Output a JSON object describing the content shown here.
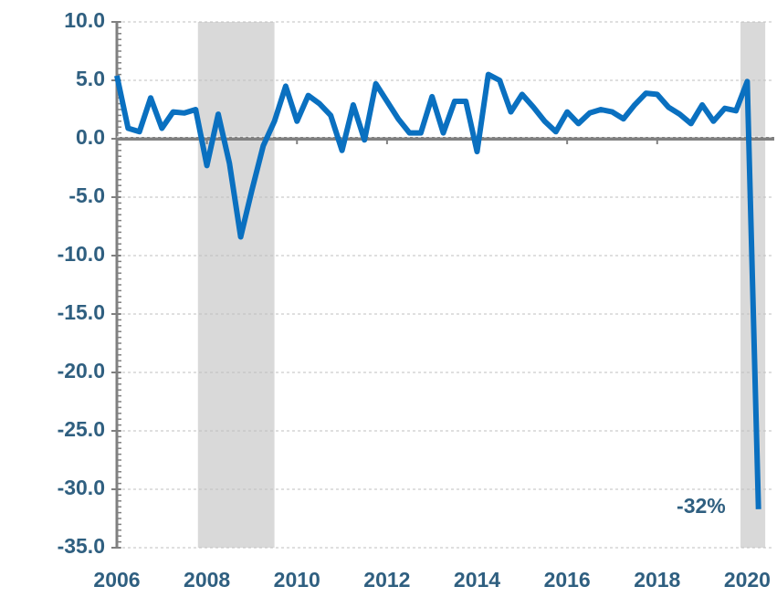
{
  "chart_data": {
    "type": "line",
    "x": [
      2006,
      2006.25,
      2006.5,
      2006.75,
      2007,
      2007.25,
      2007.5,
      2007.75,
      2008,
      2008.25,
      2008.5,
      2008.75,
      2009,
      2009.25,
      2009.5,
      2009.75,
      2010,
      2010.25,
      2010.5,
      2010.75,
      2011,
      2011.25,
      2011.5,
      2011.75,
      2012,
      2012.25,
      2012.5,
      2012.75,
      2013,
      2013.25,
      2013.5,
      2013.75,
      2014,
      2014.25,
      2014.5,
      2014.75,
      2015,
      2015.25,
      2015.5,
      2015.75,
      2016,
      2016.25,
      2016.5,
      2016.75,
      2017,
      2017.25,
      2017.5,
      2017.75,
      2018,
      2018.25,
      2018.5,
      2018.75,
      2019,
      2019.25,
      2019.5,
      2019.75,
      2020,
      2020.25
    ],
    "values": [
      5.4,
      0.9,
      0.6,
      3.5,
      0.9,
      2.3,
      2.2,
      2.5,
      -2.3,
      2.1,
      -2.1,
      -8.4,
      -4.4,
      -0.6,
      1.5,
      4.5,
      1.5,
      3.7,
      3.0,
      2.0,
      -1.0,
      2.9,
      -0.1,
      4.7,
      3.2,
      1.7,
      0.5,
      0.5,
      3.6,
      0.5,
      3.2,
      3.2,
      -1.1,
      5.5,
      5.0,
      2.3,
      3.8,
      2.7,
      1.5,
      0.6,
      2.3,
      1.3,
      2.2,
      2.5,
      2.3,
      1.7,
      2.9,
      3.9,
      3.8,
      2.7,
      2.1,
      1.3,
      2.9,
      1.5,
      2.6,
      2.4,
      4.9,
      -31.7
    ],
    "color": "#0a70c0",
    "shaded_ranges": [
      [
        2007.8,
        2009.5
      ],
      [
        2019.85,
        2020.4
      ]
    ],
    "shade_color": "#d9d9d9",
    "annotation": "-32%",
    "xlim": [
      2006,
      2020.6
    ],
    "xticks": [
      2006,
      2008,
      2010,
      2012,
      2014,
      2016,
      2018,
      2020
    ],
    "ylim": [
      -35,
      10
    ],
    "yticks": [
      {
        "value": 10,
        "label": "10.0"
      },
      {
        "value": 5,
        "label": "5.0"
      },
      {
        "value": 0,
        "label": "0.0"
      },
      {
        "value": -5,
        "label": "-5.0"
      },
      {
        "value": -10,
        "label": "-10.0"
      },
      {
        "value": -15,
        "label": "-15.0"
      },
      {
        "value": -20,
        "label": "-20.0"
      },
      {
        "value": -25,
        "label": "-25.0"
      },
      {
        "value": -30,
        "label": "-30.0"
      },
      {
        "value": -35,
        "label": "-35.0"
      }
    ],
    "grid": true
  }
}
